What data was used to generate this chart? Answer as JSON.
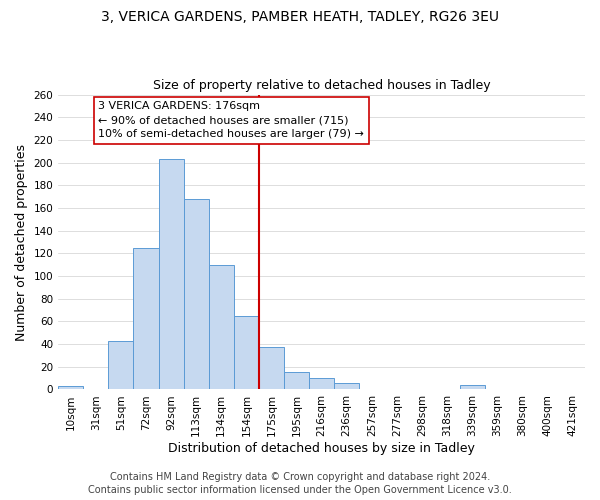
{
  "title": "3, VERICA GARDENS, PAMBER HEATH, TADLEY, RG26 3EU",
  "subtitle": "Size of property relative to detached houses in Tadley",
  "xlabel": "Distribution of detached houses by size in Tadley",
  "ylabel": "Number of detached properties",
  "bar_labels": [
    "10sqm",
    "31sqm",
    "51sqm",
    "72sqm",
    "92sqm",
    "113sqm",
    "134sqm",
    "154sqm",
    "175sqm",
    "195sqm",
    "216sqm",
    "236sqm",
    "257sqm",
    "277sqm",
    "298sqm",
    "318sqm",
    "339sqm",
    "359sqm",
    "380sqm",
    "400sqm",
    "421sqm"
  ],
  "bar_values": [
    3,
    0,
    43,
    125,
    203,
    168,
    110,
    65,
    37,
    15,
    10,
    6,
    0,
    0,
    0,
    0,
    4,
    0,
    0,
    0,
    0
  ],
  "bar_color": "#c6d9f0",
  "bar_edge_color": "#5b9bd5",
  "vline_color": "#cc0000",
  "annotation_text": "3 VERICA GARDENS: 176sqm\n← 90% of detached houses are smaller (715)\n10% of semi-detached houses are larger (79) →",
  "annotation_box_color": "#ffffff",
  "annotation_box_edge": "#cc0000",
  "ylim": [
    0,
    260
  ],
  "yticks": [
    0,
    20,
    40,
    60,
    80,
    100,
    120,
    140,
    160,
    180,
    200,
    220,
    240,
    260
  ],
  "footer1": "Contains HM Land Registry data © Crown copyright and database right 2024.",
  "footer2": "Contains public sector information licensed under the Open Government Licence v3.0.",
  "title_fontsize": 10,
  "subtitle_fontsize": 9,
  "label_fontsize": 9,
  "tick_fontsize": 7.5,
  "footer_fontsize": 7,
  "annotation_fontsize": 8
}
